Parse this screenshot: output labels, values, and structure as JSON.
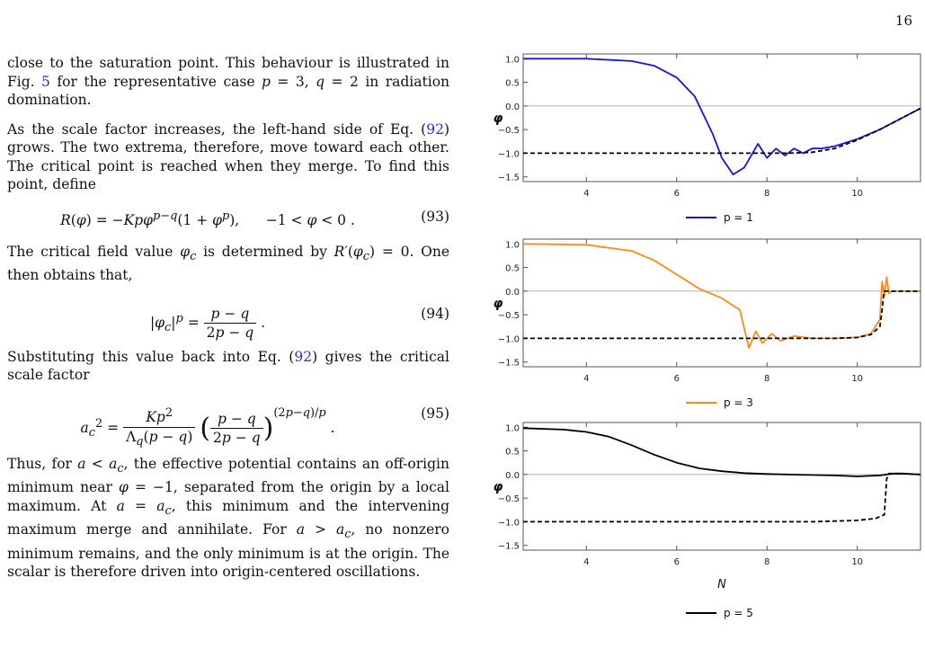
{
  "page_number": "16",
  "text": {
    "p1": "close to the saturation point. This behaviour is illustrated in Fig. 5 for the representative case p = 3, q = 2 in radiation domination.",
    "p2": "As the scale factor increases, the left-hand side of Eq. (92) grows. The two extrema, therefore, move toward each other. The critical point is reached when they merge. To find this point, define",
    "eq93": "R(φ) = −Kpφ^(p−q)(1 + φ^p),      −1 < φ < 0 .",
    "eq93_num": "(93)",
    "p3": "The critical field value φc is determined by R′(φc) = 0. One then obtains that,",
    "eq94": "|φc|^p = (p − q) / (2p − q) .",
    "eq94_num": "(94)",
    "p4": "Substituting this value back into Eq. (92) gives the critical scale factor",
    "eq95": "ac² = Kp² / (Λq(p − q)) · ((p − q)/(2p − q))^((2p−q)/p) .",
    "eq95_num": "(95)",
    "p5": "Thus, for a < ac, the effective potential contains an off-origin minimum near φ = −1, separated from the origin by a local maximum. At a = ac, this minimum and the intervening maximum merge and annihilate. For a > ac, no nonzero minimum remains, and the only minimum is at the origin. The scalar is therefore driven into origin-centered oscillations."
  },
  "chart_data": [
    {
      "type": "line",
      "ylabel": "φ",
      "xlim": [
        2.6,
        11.4
      ],
      "ylim": [
        -1.6,
        1.1
      ],
      "x_ticks": [
        "4",
        "6",
        "8",
        "10"
      ],
      "y_ticks": [
        "1.0",
        "0.5",
        "0.0",
        "−0.5",
        "−1.0",
        "−1.5"
      ],
      "legend": "p = 1",
      "color": "#1515dd",
      "series": [
        {
          "name": "p = 1",
          "style": "solid",
          "x": [
            2.6,
            4.0,
            5.0,
            5.5,
            6.0,
            6.4,
            6.8,
            7.0,
            7.25,
            7.5,
            7.8,
            8.0,
            8.2,
            8.4,
            8.6,
            8.8,
            9.0,
            9.2,
            9.5,
            10.0,
            10.5,
            11.0,
            11.4
          ],
          "y": [
            1.0,
            1.0,
            0.95,
            0.85,
            0.6,
            0.2,
            -0.6,
            -1.1,
            -1.45,
            -1.3,
            -0.8,
            -1.1,
            -0.9,
            -1.05,
            -0.9,
            -1.0,
            -0.9,
            -0.9,
            -0.85,
            -0.7,
            -0.5,
            -0.25,
            -0.05
          ]
        },
        {
          "name": "",
          "style": "dashed",
          "x": [
            2.6,
            8.5,
            9.0,
            9.5,
            10.0,
            10.5,
            11.0,
            11.4
          ],
          "y": [
            -1.0,
            -1.0,
            -0.98,
            -0.9,
            -0.72,
            -0.5,
            -0.25,
            -0.05
          ]
        }
      ]
    },
    {
      "type": "line",
      "ylabel": "φ",
      "xlim": [
        2.6,
        11.4
      ],
      "ylim": [
        -1.6,
        1.1
      ],
      "x_ticks": [
        "4",
        "6",
        "8",
        "10"
      ],
      "y_ticks": [
        "1.0",
        "0.5",
        "0.0",
        "−0.5",
        "−1.0",
        "−1.5"
      ],
      "legend": "p = 3",
      "color": "#ff8a14",
      "series": [
        {
          "name": "p = 3",
          "style": "solid",
          "x": [
            2.6,
            4.0,
            5.0,
            5.5,
            6.0,
            6.5,
            7.0,
            7.4,
            7.6,
            7.75,
            7.9,
            8.1,
            8.3,
            8.6,
            9.0,
            9.5,
            10.0,
            10.3,
            10.5,
            10.55,
            10.6,
            10.65,
            10.7,
            10.75,
            11.0,
            11.4
          ],
          "y": [
            1.0,
            0.98,
            0.85,
            0.65,
            0.35,
            0.05,
            -0.15,
            -0.4,
            -1.2,
            -0.85,
            -1.1,
            -0.9,
            -1.05,
            -0.95,
            -1.0,
            -1.0,
            -0.98,
            -0.9,
            -0.6,
            0.2,
            -0.1,
            0.3,
            -0.05,
            0.0,
            0.0,
            0.0
          ]
        },
        {
          "name": "",
          "style": "dashed",
          "x": [
            2.6,
            9.5,
            10.0,
            10.3,
            10.5,
            10.55,
            10.58,
            10.6,
            11.0,
            11.4
          ],
          "y": [
            -1.0,
            -1.0,
            -0.98,
            -0.92,
            -0.75,
            -0.4,
            -0.1,
            0.0,
            0.0,
            0.0
          ]
        }
      ]
    },
    {
      "type": "line",
      "ylabel": "φ",
      "xlabel": "N",
      "xlim": [
        2.6,
        11.4
      ],
      "ylim": [
        -1.6,
        1.1
      ],
      "x_ticks": [
        "4",
        "6",
        "8",
        "10"
      ],
      "y_ticks": [
        "1.0",
        "0.5",
        "0.0",
        "−0.5",
        "−1.0",
        "−1.5"
      ],
      "legend": "p = 5",
      "color": "#000000",
      "series": [
        {
          "name": "p = 5",
          "style": "solid",
          "x": [
            2.6,
            3.5,
            4.0,
            4.5,
            5.0,
            5.5,
            6.0,
            6.5,
            7.0,
            7.5,
            8.0,
            8.5,
            9.0,
            9.5,
            10.0,
            10.5,
            10.8,
            11.0,
            11.4
          ],
          "y": [
            0.98,
            0.95,
            0.9,
            0.8,
            0.62,
            0.42,
            0.25,
            0.13,
            0.07,
            0.03,
            0.01,
            0.0,
            -0.01,
            -0.02,
            -0.04,
            -0.02,
            0.02,
            0.02,
            0.0
          ]
        },
        {
          "name": "",
          "style": "dashed",
          "x": [
            2.6,
            8.0,
            9.0,
            10.0,
            10.4,
            10.6,
            10.65,
            10.7,
            11.0,
            11.4
          ],
          "y": [
            -1.0,
            -1.0,
            -1.0,
            -0.97,
            -0.93,
            -0.85,
            -0.1,
            0.02,
            0.02,
            0.0
          ]
        }
      ]
    }
  ]
}
